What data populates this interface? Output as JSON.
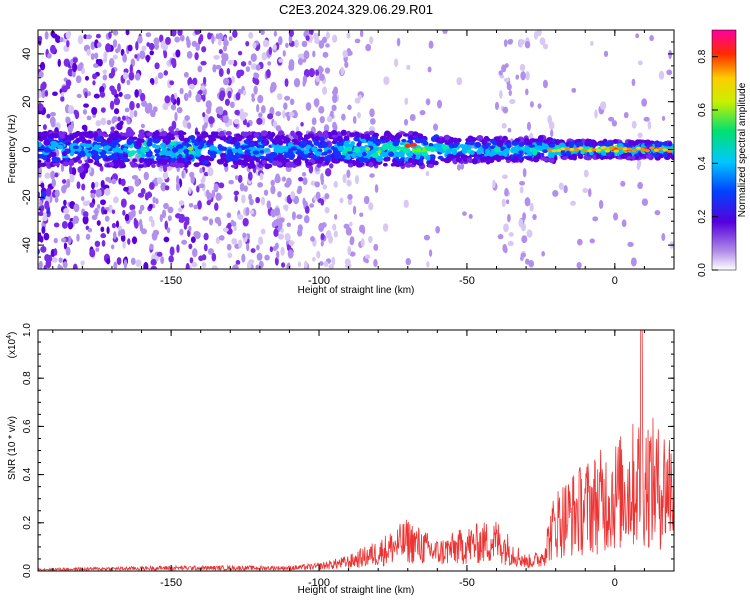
{
  "title": "C2E3.2024.329.06.29.R01",
  "colors": {
    "snr_line": "#ee3333",
    "axis": "#000000",
    "background": "#ffffff"
  },
  "chart_data": [
    {
      "type": "heatmap",
      "title": "C2E3.2024.329.06.29.R01",
      "xlabel": "Height of straight line (km)",
      "ylabel": "Frequency (Hz)",
      "xlim": [
        -195,
        20
      ],
      "ylim": [
        -50,
        50
      ],
      "x_ticks": [
        -150,
        -100,
        -50,
        0
      ],
      "y_ticks": [
        -40,
        -20,
        0,
        20,
        40
      ],
      "colorbar": {
        "label": "Normalized spectral amplitude",
        "range": [
          0.0,
          0.9
        ],
        "ticks": [
          "0.0",
          "0.2",
          "0.4",
          "0.6",
          "0.8"
        ],
        "colormap": "rainbow (white - purple - blue - cyan - green - yellow - red - magenta)"
      },
      "description_of_pattern": {
        "band_center_hz": 0,
        "band_halfwidth_hz": [
          6,
          3
        ],
        "strong_return_x_km": [
          -70,
          15
        ],
        "peak_amplitude_x_km": [
          -70,
          0,
          10
        ]
      },
      "grid": false
    },
    {
      "type": "line",
      "xlabel": "Height of straight line (km)",
      "ylabel": "SNR (10 * v/v)",
      "y_multiplier": "(x10",
      "y_multiplier_exp": "4",
      "xlim": [
        -195,
        20
      ],
      "ylim": [
        0.0,
        1.0
      ],
      "x_ticks": [
        -150,
        -100,
        -50,
        0
      ],
      "y_ticks": [
        "0.0",
        "0.2",
        "0.4",
        "0.6",
        "0.8",
        "1.0"
      ],
      "envelope": {
        "x": [
          -195,
          -150,
          -110,
          -100,
          -90,
          -80,
          -70,
          -60,
          -50,
          -40,
          -30,
          -25,
          -20,
          -10,
          0,
          5,
          10,
          15,
          20
        ],
        "y": [
          0.01,
          0.02,
          0.02,
          0.03,
          0.06,
          0.12,
          0.2,
          0.12,
          0.17,
          0.2,
          0.06,
          0.08,
          0.32,
          0.42,
          0.5,
          0.55,
          0.62,
          0.55,
          0.58
        ]
      },
      "peak": {
        "x": 9,
        "y": 1.0
      },
      "grid": false
    }
  ]
}
